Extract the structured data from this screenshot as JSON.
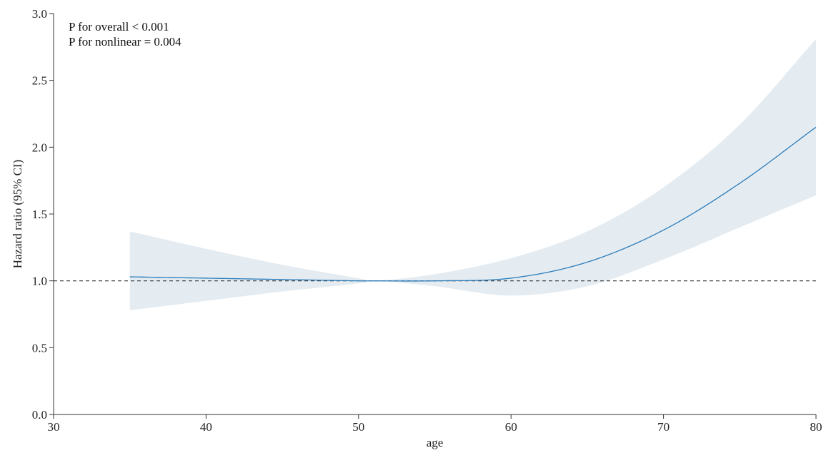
{
  "chart_data": {
    "type": "line",
    "title": "",
    "xlabel": "age",
    "ylabel": "Hazard ratio (95% CI)",
    "xlim": [
      30,
      80
    ],
    "ylim": [
      0.0,
      3.0
    ],
    "x_ticks": [
      30,
      40,
      50,
      60,
      70,
      80
    ],
    "y_ticks": [
      0.0,
      0.5,
      1.0,
      1.5,
      2.0,
      2.5,
      3.0
    ],
    "x_tick_labels": [
      "30",
      "40",
      "50",
      "60",
      "70",
      "80"
    ],
    "y_tick_labels": [
      "0.0",
      "0.5",
      "1.0",
      "1.5",
      "2.0",
      "2.5",
      "3.0"
    ],
    "reference_line": 1.0,
    "grid": false,
    "annotations": [
      "P for overall < 0.001",
      "P for nonlinear = 0.004"
    ],
    "colors": {
      "line": "#2b7bb9",
      "band": "#e4ecf2",
      "reference": "#333333"
    },
    "series": [
      {
        "x": [
          35,
          40,
          45,
          50,
          51,
          55,
          60,
          65,
          70,
          75,
          80
        ],
        "y": [
          1.03,
          1.02,
          1.01,
          1.0,
          1.0,
          1.0,
          1.02,
          1.14,
          1.38,
          1.73,
          2.15
        ],
        "lower": [
          0.78,
          0.85,
          0.92,
          0.98,
          1.0,
          0.96,
          0.89,
          0.96,
          1.16,
          1.4,
          1.64
        ],
        "upper": [
          1.37,
          1.24,
          1.12,
          1.02,
          1.0,
          1.05,
          1.17,
          1.37,
          1.7,
          2.17,
          2.81
        ]
      }
    ]
  }
}
